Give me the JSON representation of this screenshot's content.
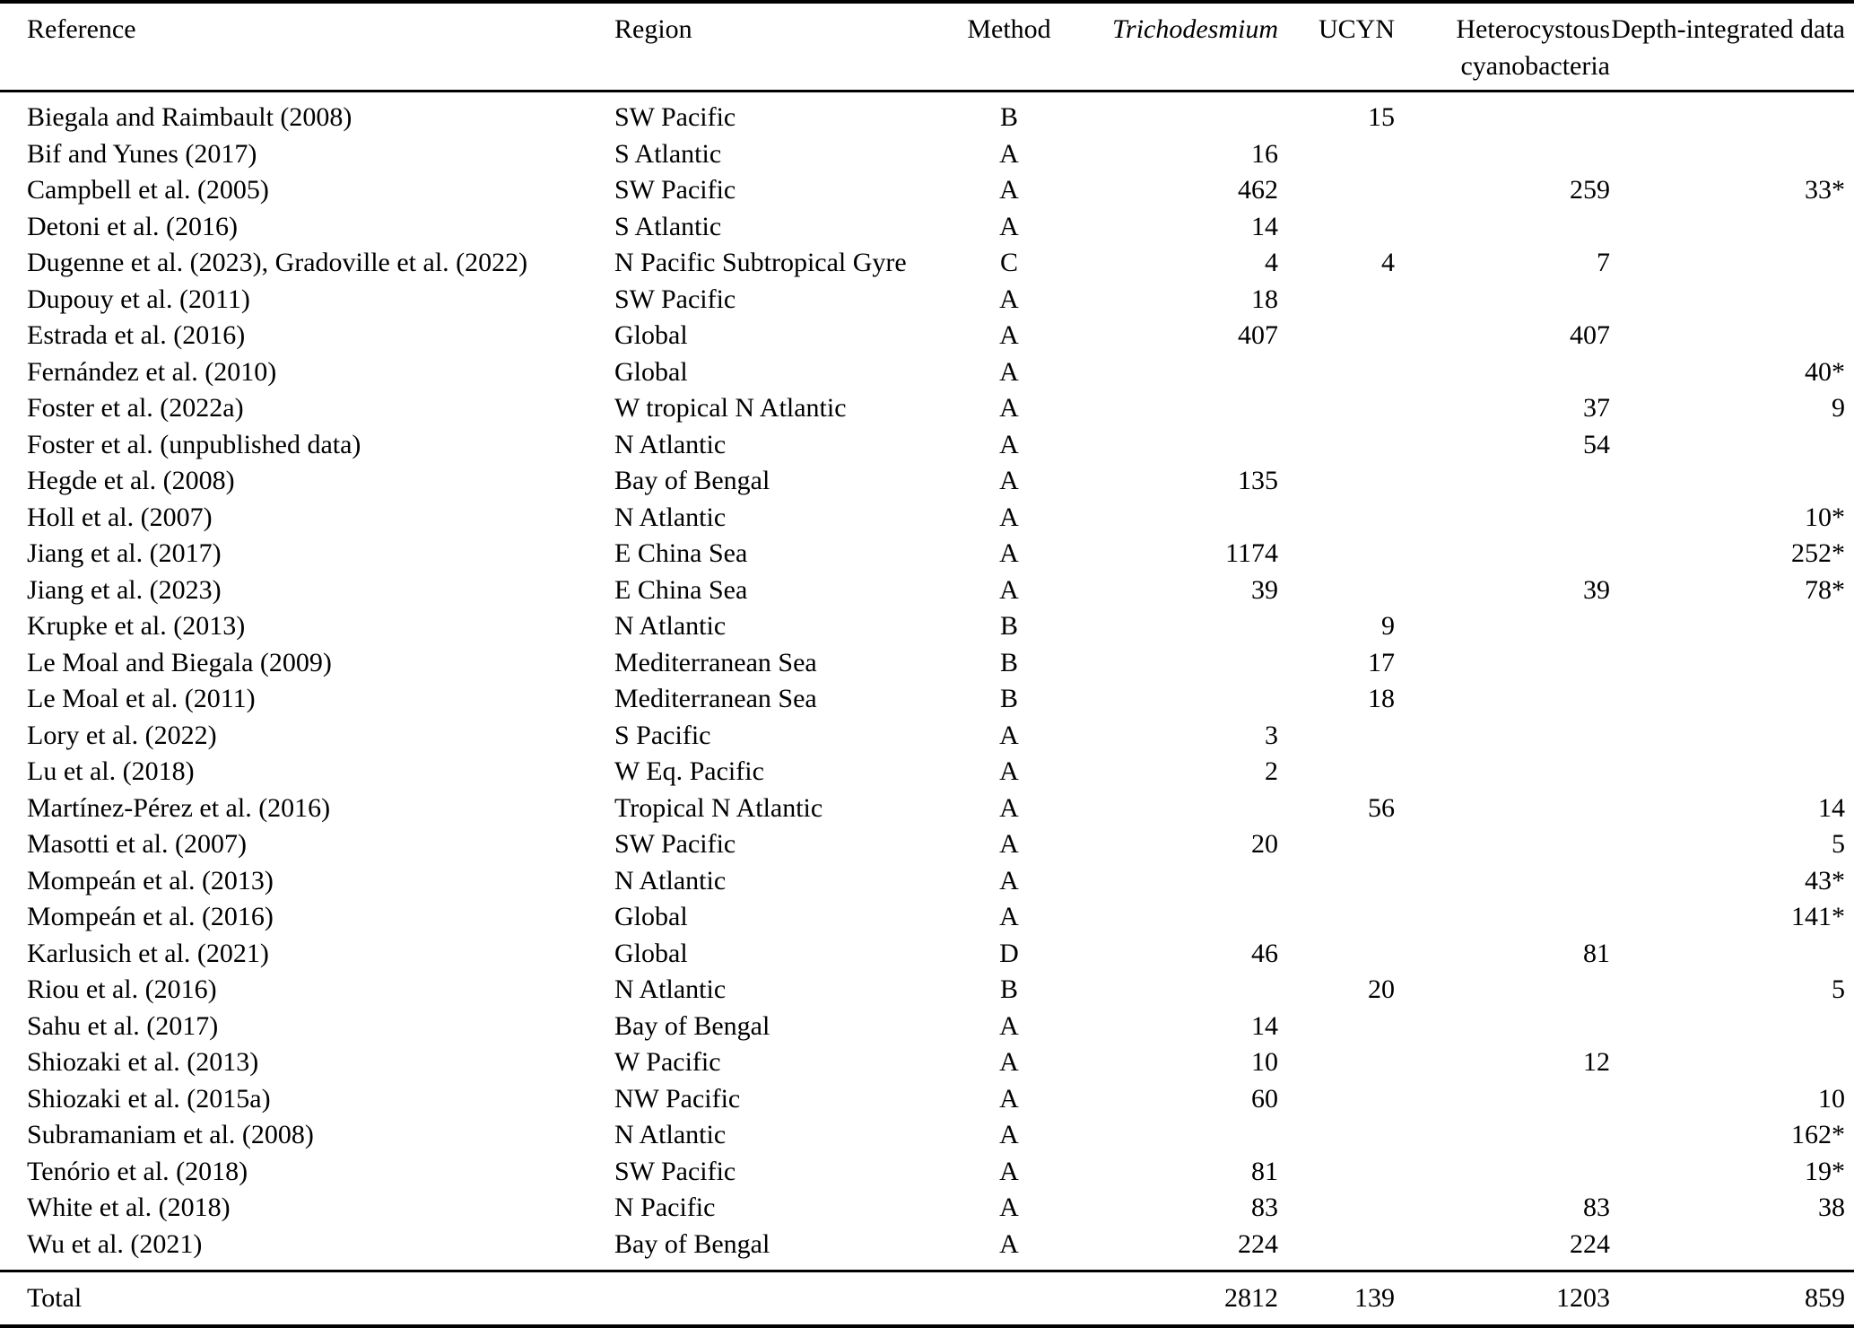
{
  "page": {
    "background_color": "#ffffff",
    "text_color": "#000000",
    "rule_color": "#000000"
  },
  "table": {
    "columns": [
      {
        "key": "reference",
        "label": "Reference",
        "align": "left",
        "italic": false
      },
      {
        "key": "region",
        "label": "Region",
        "align": "left",
        "italic": false
      },
      {
        "key": "method",
        "label": "Method",
        "align": "center",
        "italic": false
      },
      {
        "key": "trichodesmium",
        "label": "Trichodesmium",
        "align": "right",
        "italic": true
      },
      {
        "key": "ucyn",
        "label": "UCYN",
        "align": "right",
        "italic": false
      },
      {
        "key": "heterocystous",
        "label": "Heterocystous cyanobacteria",
        "align": "right",
        "italic": false
      },
      {
        "key": "depth_integrated",
        "label": "Depth-integrated data",
        "align": "right",
        "italic": false
      }
    ],
    "rows": [
      [
        "Biegala and Raimbault (2008)",
        "SW Pacific",
        "B",
        "",
        "15",
        "",
        ""
      ],
      [
        "Bif and Yunes (2017)",
        "S Atlantic",
        "A",
        "16",
        "",
        "",
        ""
      ],
      [
        "Campbell et al. (2005)",
        "SW Pacific",
        "A",
        "462",
        "",
        "259",
        "33*"
      ],
      [
        "Detoni et al. (2016)",
        "S Atlantic",
        "A",
        "14",
        "",
        "",
        ""
      ],
      [
        "Dugenne et al. (2023), Gradoville et al. (2022)",
        "N Pacific Subtropical Gyre",
        "C",
        "4",
        "4",
        "7",
        ""
      ],
      [
        "Dupouy et al. (2011)",
        "SW Pacific",
        "A",
        "18",
        "",
        "",
        ""
      ],
      [
        "Estrada et al. (2016)",
        "Global",
        "A",
        "407",
        "",
        "407",
        ""
      ],
      [
        "Fernández et al. (2010)",
        "Global",
        "A",
        "",
        "",
        "",
        "40*"
      ],
      [
        "Foster et al. (2022a)",
        "W tropical N Atlantic",
        "A",
        "",
        "",
        "37",
        "9"
      ],
      [
        "Foster et al. (unpublished data)",
        "N Atlantic",
        "A",
        "",
        "",
        "54",
        ""
      ],
      [
        "Hegde et al. (2008)",
        "Bay of Bengal",
        "A",
        "135",
        "",
        "",
        ""
      ],
      [
        "Holl et al. (2007)",
        "N Atlantic",
        "A",
        "",
        "",
        "",
        "10*"
      ],
      [
        "Jiang et al. (2017)",
        "E China Sea",
        "A",
        "1174",
        "",
        "",
        "252*"
      ],
      [
        "Jiang et al. (2023)",
        "E China Sea",
        "A",
        "39",
        "",
        "39",
        "78*"
      ],
      [
        "Krupke et al. (2013)",
        "N Atlantic",
        "B",
        "",
        "9",
        "",
        ""
      ],
      [
        "Le Moal and Biegala (2009)",
        "Mediterranean Sea",
        "B",
        "",
        "17",
        "",
        ""
      ],
      [
        "Le Moal et al. (2011)",
        "Mediterranean Sea",
        "B",
        "",
        "18",
        "",
        ""
      ],
      [
        "Lory et al. (2022)",
        "S Pacific",
        "A",
        "3",
        "",
        "",
        ""
      ],
      [
        "Lu et al. (2018)",
        "W Eq. Pacific",
        "A",
        "2",
        "",
        "",
        ""
      ],
      [
        "Martínez-Pérez et al. (2016)",
        "Tropical N Atlantic",
        "A",
        "",
        "56",
        "",
        "14"
      ],
      [
        "Masotti et al. (2007)",
        "SW Pacific",
        "A",
        "20",
        "",
        "",
        "5"
      ],
      [
        "Mompeán et al. (2013)",
        "N Atlantic",
        "A",
        "",
        "",
        "",
        "43*"
      ],
      [
        "Mompeán et al. (2016)",
        "Global",
        "A",
        "",
        "",
        "",
        "141*"
      ],
      [
        "Karlusich et al. (2021)",
        "Global",
        "D",
        "46",
        "",
        "81",
        ""
      ],
      [
        "Riou et al. (2016)",
        "N Atlantic",
        "B",
        "",
        "20",
        "",
        "5"
      ],
      [
        "Sahu et al. (2017)",
        "Bay of Bengal",
        "A",
        "14",
        "",
        "",
        ""
      ],
      [
        "Shiozaki et al. (2013)",
        "W Pacific",
        "A",
        "10",
        "",
        "12",
        ""
      ],
      [
        "Shiozaki et al. (2015a)",
        "NW Pacific",
        "A",
        "60",
        "",
        "",
        "10"
      ],
      [
        "Subramaniam et al. (2008)",
        "N Atlantic",
        "A",
        "",
        "",
        "",
        "162*"
      ],
      [
        "Tenório et al. (2018)",
        "SW Pacific",
        "A",
        "81",
        "",
        "",
        "19*"
      ],
      [
        "White et al. (2018)",
        "N Pacific",
        "A",
        "83",
        "",
        "83",
        "38"
      ],
      [
        "Wu et al. (2021)",
        "Bay of Bengal",
        "A",
        "224",
        "",
        "224",
        ""
      ]
    ],
    "total_row": {
      "label": "Total",
      "trichodesmium": "2812",
      "ucyn": "139",
      "heterocystous": "1203",
      "depth_integrated": "859"
    }
  }
}
